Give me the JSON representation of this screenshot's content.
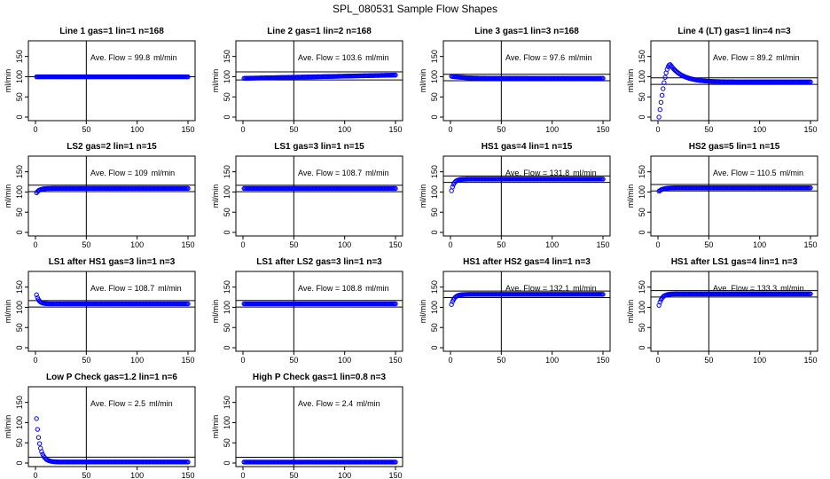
{
  "page": {
    "title": "SPL_080531  Sample Flow Shapes"
  },
  "style": {
    "point_color": "#0000ff",
    "line_color": "#000000"
  },
  "chart_data": [
    {
      "type": "scatter",
      "title": "Line 1 gas=1 lin=1 n=168",
      "ann_prefix": "Ave. Flow = ",
      "ave_value": "99.8",
      "ann_unit": "ml/min",
      "ylabel": "ml/min",
      "xlim": [
        0,
        150
      ],
      "ylim": [
        0,
        180
      ],
      "xticks": [
        0,
        50,
        100,
        150
      ],
      "yticks": [
        0,
        50,
        100,
        150
      ],
      "vline": 50,
      "hlines": [
        99.8
      ],
      "shape": {
        "kind": "flat",
        "level": 99.8,
        "start": 1,
        "step": 1
      }
    },
    {
      "type": "scatter",
      "title": "Line 2 gas=1 lin=2 n=168",
      "ann_prefix": "Ave. Flow = ",
      "ave_value": "103.6",
      "ann_unit": "ml/min",
      "ylabel": "ml/min",
      "xlim": [
        0,
        150
      ],
      "ylim": [
        0,
        180
      ],
      "xticks": [
        0,
        50,
        100,
        150
      ],
      "yticks": [
        0,
        50,
        100,
        150
      ],
      "vline": 50,
      "hlines": [
        112,
        92
      ],
      "shape": {
        "kind": "ramp",
        "start_y": 96,
        "end_y": 104,
        "ramp_end": 150,
        "start": 1,
        "step": 1
      }
    },
    {
      "type": "scatter",
      "title": "Line 3 gas=1 lin=3 n=168",
      "ann_prefix": "Ave. Flow = ",
      "ave_value": "97.6",
      "ann_unit": "ml/min",
      "ylabel": "ml/min",
      "xlim": [
        0,
        150
      ],
      "ylim": [
        0,
        180
      ],
      "xticks": [
        0,
        50,
        100,
        150
      ],
      "yticks": [
        0,
        50,
        100,
        150
      ],
      "vline": 50,
      "hlines": [
        106,
        90
      ],
      "shape": {
        "kind": "decay",
        "start_y": 101,
        "level": 96,
        "tau": 12,
        "start": 1,
        "step": 1
      }
    },
    {
      "type": "scatter",
      "title": "Line 4 (LT) gas=1 lin=4 n=3",
      "ann_prefix": "Ave. Flow = ",
      "ave_value": "89.2",
      "ann_unit": "ml/min",
      "ylabel": "ml/min",
      "xlim": [
        0,
        150
      ],
      "ylim": [
        0,
        180
      ],
      "xticks": [
        0,
        50,
        100,
        150
      ],
      "yticks": [
        0,
        50,
        100,
        150
      ],
      "vline": 50,
      "hlines": [
        97,
        81
      ],
      "shape": {
        "kind": "overshoot",
        "start_y": 0,
        "peak_y": 130,
        "peak_x": 12,
        "level": 87,
        "tau": 12,
        "start": 1,
        "step": 1
      }
    },
    {
      "type": "scatter",
      "title": "LS2 gas=2 lin=1 n=15",
      "ann_prefix": "Ave. Flow = ",
      "ave_value": "109",
      "ann_unit": "ml/min",
      "ylabel": "ml/min",
      "xlim": [
        0,
        150
      ],
      "ylim": [
        0,
        180
      ],
      "xticks": [
        0,
        50,
        100,
        150
      ],
      "yticks": [
        0,
        50,
        100,
        150
      ],
      "vline": 50,
      "hlines": [
        117,
        101
      ],
      "shape": {
        "kind": "rise",
        "start_y": 98,
        "level": 109,
        "tau": 3,
        "start": 1,
        "step": 1
      }
    },
    {
      "type": "scatter",
      "title": "LS1 gas=3 lin=1 n=15",
      "ann_prefix": "Ave. Flow = ",
      "ave_value": "108.7",
      "ann_unit": "ml/min",
      "ylabel": "ml/min",
      "xlim": [
        0,
        150
      ],
      "ylim": [
        0,
        180
      ],
      "xticks": [
        0,
        50,
        100,
        150
      ],
      "yticks": [
        0,
        50,
        100,
        150
      ],
      "vline": 50,
      "hlines": [
        116.7,
        100.7
      ],
      "shape": {
        "kind": "flat",
        "level": 108.7,
        "start": 1,
        "step": 1
      }
    },
    {
      "type": "scatter",
      "title": "HS1 gas=4 lin=1 n=15",
      "ann_prefix": "Ave. Flow = ",
      "ave_value": "131.8",
      "ann_unit": "ml/min",
      "ylabel": "ml/min",
      "xlim": [
        0,
        150
      ],
      "ylim": [
        0,
        180
      ],
      "xticks": [
        0,
        50,
        100,
        150
      ],
      "yticks": [
        0,
        50,
        100,
        150
      ],
      "vline": 50,
      "hlines": [
        139.8,
        123.8
      ],
      "shape": {
        "kind": "rise",
        "start_y": 103,
        "level": 131.8,
        "tau": 2.5,
        "start": 1,
        "step": 1
      }
    },
    {
      "type": "scatter",
      "title": "HS2 gas=5 lin=1 n=15",
      "ann_prefix": "Ave. Flow = ",
      "ave_value": "110.5",
      "ann_unit": "ml/min",
      "ylabel": "ml/min",
      "xlim": [
        0,
        150
      ],
      "ylim": [
        0,
        180
      ],
      "xticks": [
        0,
        50,
        100,
        150
      ],
      "yticks": [
        0,
        50,
        100,
        150
      ],
      "vline": 50,
      "hlines": [
        118.5,
        102.5
      ],
      "shape": {
        "kind": "rise",
        "start_y": 102,
        "level": 110.5,
        "tau": 4,
        "start": 1,
        "step": 1
      }
    },
    {
      "type": "scatter",
      "title": "LS1 after HS1 gas=3 lin=1 n=3",
      "ann_prefix": "Ave. Flow = ",
      "ave_value": "108.7",
      "ann_unit": "ml/min",
      "ylabel": "ml/min",
      "xlim": [
        0,
        150
      ],
      "ylim": [
        0,
        180
      ],
      "xticks": [
        0,
        50,
        100,
        150
      ],
      "yticks": [
        0,
        50,
        100,
        150
      ],
      "vline": 50,
      "hlines": [
        116.7,
        100.7
      ],
      "shape": {
        "kind": "decay",
        "start_y": 131,
        "level": 108.7,
        "tau": 2.5,
        "start": 1,
        "step": 1
      }
    },
    {
      "type": "scatter",
      "title": "LS1 after LS2 gas=3 lin=1 n=3",
      "ann_prefix": "Ave. Flow = ",
      "ave_value": "108.8",
      "ann_unit": "ml/min",
      "ylabel": "ml/min",
      "xlim": [
        0,
        150
      ],
      "ylim": [
        0,
        180
      ],
      "xticks": [
        0,
        50,
        100,
        150
      ],
      "yticks": [
        0,
        50,
        100,
        150
      ],
      "vline": 50,
      "hlines": [
        116.8,
        100.8
      ],
      "shape": {
        "kind": "flat",
        "level": 108.8,
        "start": 1,
        "step": 1
      }
    },
    {
      "type": "scatter",
      "title": "HS1 after HS2 gas=4 lin=1 n=3",
      "ann_prefix": "Ave. Flow = ",
      "ave_value": "132.1",
      "ann_unit": "ml/min",
      "ylabel": "ml/min",
      "xlim": [
        0,
        150
      ],
      "ylim": [
        0,
        180
      ],
      "xticks": [
        0,
        50,
        100,
        150
      ],
      "yticks": [
        0,
        50,
        100,
        150
      ],
      "vline": 50,
      "hlines": [
        140.1,
        124.1
      ],
      "shape": {
        "kind": "rise",
        "start_y": 107,
        "level": 132.1,
        "tau": 3,
        "start": 1,
        "step": 1
      }
    },
    {
      "type": "scatter",
      "title": "HS1 after LS1 gas=4 lin=1 n=3",
      "ann_prefix": "Ave. Flow = ",
      "ave_value": "133.3",
      "ann_unit": "ml/min",
      "ylabel": "ml/min",
      "xlim": [
        0,
        150
      ],
      "ylim": [
        0,
        180
      ],
      "xticks": [
        0,
        50,
        100,
        150
      ],
      "yticks": [
        0,
        50,
        100,
        150
      ],
      "vline": 50,
      "hlines": [
        141.3,
        125.3
      ],
      "shape": {
        "kind": "rise",
        "start_y": 105,
        "level": 133.3,
        "tau": 3,
        "start": 1,
        "step": 1
      }
    },
    {
      "type": "scatter",
      "title": "Low P Check gas=1.2 lin=1 n=6",
      "ann_prefix": "Ave. Flow = ",
      "ave_value": "2.5",
      "ann_unit": "ml/min",
      "ylabel": "ml/min",
      "xlim": [
        0,
        150
      ],
      "ylim": [
        0,
        180
      ],
      "xticks": [
        0,
        50,
        100,
        150
      ],
      "yticks": [
        0,
        50,
        100,
        150
      ],
      "vline": 50,
      "hlines": [
        14.5
      ],
      "shape": {
        "kind": "decay",
        "start_y": 110,
        "level": 2.5,
        "tau": 3.5,
        "start": 1,
        "step": 1
      }
    },
    {
      "type": "scatter",
      "title": "High P Check gas=1 lin=0.8 n=3",
      "ann_prefix": "Ave. Flow = ",
      "ave_value": "2.4",
      "ann_unit": "ml/min",
      "ylabel": "ml/min",
      "xlim": [
        0,
        150
      ],
      "ylim": [
        0,
        180
      ],
      "xticks": [
        0,
        50,
        100,
        150
      ],
      "yticks": [
        0,
        50,
        100,
        150
      ],
      "vline": 50,
      "hlines": [
        14.4
      ],
      "shape": {
        "kind": "flat",
        "level": 2.4,
        "start": 1,
        "step": 1
      }
    }
  ]
}
